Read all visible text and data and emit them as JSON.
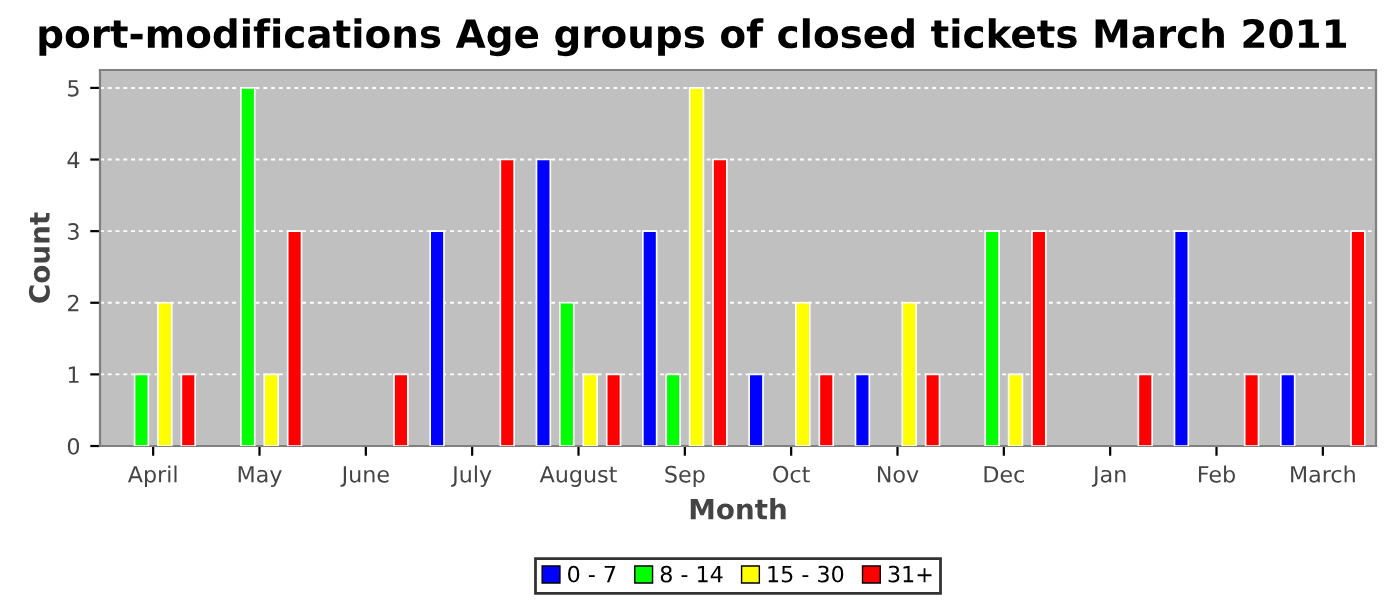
{
  "chart_data": {
    "type": "bar",
    "title": "port-modifications Age groups of closed tickets March 2011",
    "xlabel": "Month",
    "ylabel": "Count",
    "categories": [
      "April",
      "May",
      "June",
      "July",
      "August",
      "Sep",
      "Oct",
      "Nov",
      "Dec",
      "Jan",
      "Feb",
      "March"
    ],
    "series": [
      {
        "name": "0 - 7",
        "color": "#0000ff",
        "values": [
          null,
          null,
          null,
          3,
          4,
          3,
          1,
          1,
          null,
          null,
          3,
          1
        ]
      },
      {
        "name": "8 - 14",
        "color": "#00ff00",
        "values": [
          1,
          5,
          null,
          null,
          2,
          1,
          null,
          null,
          3,
          null,
          null,
          null
        ]
      },
      {
        "name": "15 - 30",
        "color": "#ffff00",
        "values": [
          2,
          1,
          null,
          null,
          1,
          5,
          2,
          2,
          1,
          null,
          null,
          null
        ]
      },
      {
        "name": "31+",
        "color": "#ff0000",
        "values": [
          1,
          3,
          1,
          4,
          1,
          4,
          1,
          1,
          3,
          1,
          1,
          3
        ]
      }
    ],
    "ylim": [
      0,
      5.25
    ],
    "yticks": [
      0,
      1,
      2,
      3,
      4,
      5
    ],
    "grid": "y",
    "legend": "bottom"
  }
}
